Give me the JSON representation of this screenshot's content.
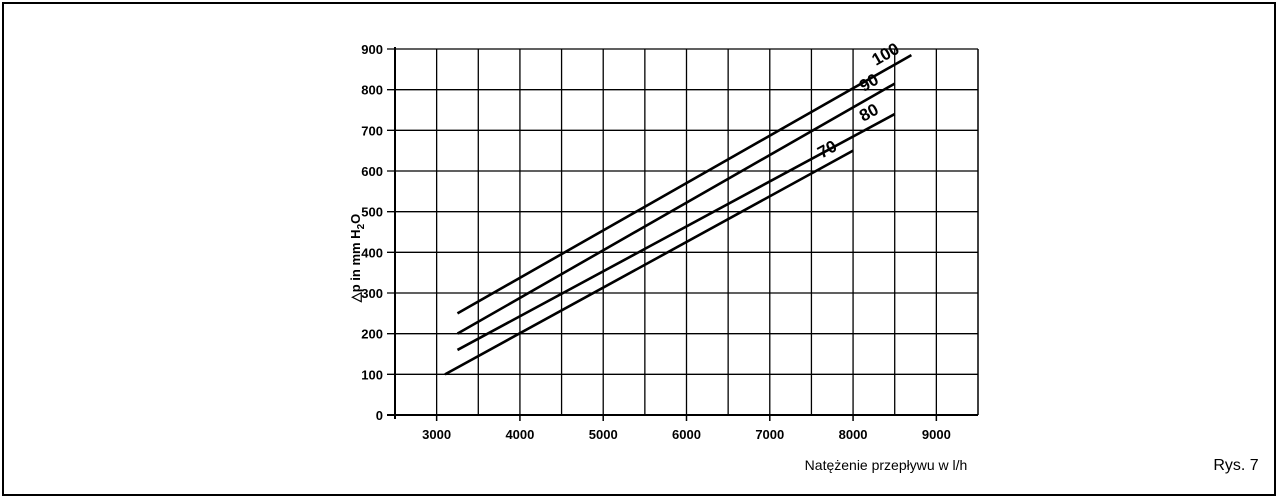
{
  "figure_label": "Rys. 7",
  "chart_data": {
    "type": "line",
    "title": "",
    "ylabel": "Δp in mm H₂O",
    "ylabel_parts": {
      "prefix": "△p in mm H",
      "sub": "2",
      "suffix": "O"
    },
    "xlabel": "Natężenie przepływu w l/h",
    "xlim": [
      2500,
      9500
    ],
    "ylim": [
      0,
      900
    ],
    "xticks": [
      3000,
      4000,
      5000,
      6000,
      7000,
      8000,
      9000
    ],
    "yticks": [
      0,
      100,
      200,
      300,
      400,
      500,
      600,
      700,
      800,
      900
    ],
    "xgrid_step": 500,
    "ygrid_step": 100,
    "grid": true,
    "series": [
      {
        "name": "100",
        "x": [
          3250,
          8700
        ],
        "y": [
          250,
          885
        ]
      },
      {
        "name": "90",
        "x": [
          3250,
          8500
        ],
        "y": [
          200,
          815
        ]
      },
      {
        "name": "80",
        "x": [
          3250,
          8500
        ],
        "y": [
          160,
          740
        ]
      },
      {
        "name": "70",
        "x": [
          3100,
          8000
        ],
        "y": [
          100,
          650
        ]
      }
    ]
  }
}
